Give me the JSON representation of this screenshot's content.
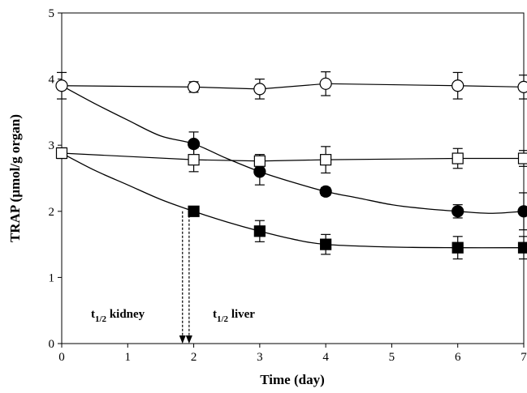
{
  "chart_data": {
    "type": "line",
    "xlabel": "Time (day)",
    "ylabel": "TRAP (µmol/g organ)",
    "xlim": [
      0,
      7
    ],
    "ylim": [
      0,
      5
    ],
    "xticks": [
      "0",
      "1",
      "2",
      "3",
      "4",
      "5",
      "6",
      "7"
    ],
    "yticks": [
      "0",
      "1",
      "2",
      "3",
      "4",
      "5"
    ],
    "grid": false,
    "series": [
      {
        "marker": "open-circle",
        "x": [
          0,
          2,
          3,
          4,
          6,
          7
        ],
        "y": [
          3.9,
          3.88,
          3.85,
          3.93,
          3.9,
          3.88
        ],
        "err": [
          0.2,
          0.08,
          0.15,
          0.18,
          0.2,
          0.18
        ]
      },
      {
        "marker": "filled-circle",
        "x": [
          2,
          3,
          4,
          6,
          7
        ],
        "y": [
          3.02,
          2.6,
          2.3,
          2.0,
          2.0
        ],
        "err": [
          0.18,
          0.2,
          0.06,
          0.1,
          0.28
        ]
      },
      {
        "marker": "open-square",
        "x": [
          0,
          2,
          3,
          4,
          6,
          7
        ],
        "y": [
          2.88,
          2.78,
          2.76,
          2.78,
          2.8,
          2.8
        ],
        "err": [
          0.08,
          0.18,
          0.1,
          0.2,
          0.15,
          0.12
        ]
      },
      {
        "marker": "filled-square",
        "x": [
          2,
          3,
          4,
          6,
          7
        ],
        "y": [
          2.0,
          1.7,
          1.5,
          1.45,
          1.45
        ],
        "err": [
          0.05,
          0.16,
          0.15,
          0.17,
          0.17
        ]
      }
    ],
    "curves": [
      {
        "points": [
          [
            0,
            3.9
          ],
          [
            0.5,
            3.63
          ],
          [
            1,
            3.38
          ],
          [
            1.5,
            3.14
          ],
          [
            2,
            3.02
          ],
          [
            2.5,
            2.8
          ],
          [
            3,
            2.6
          ],
          [
            3.5,
            2.44
          ],
          [
            4,
            2.3
          ],
          [
            4.5,
            2.2
          ],
          [
            5,
            2.1
          ],
          [
            5.5,
            2.04
          ],
          [
            6,
            2.0
          ],
          [
            6.5,
            1.97
          ],
          [
            7,
            2.0
          ]
        ]
      },
      {
        "points": [
          [
            0,
            2.88
          ],
          [
            0.5,
            2.62
          ],
          [
            1,
            2.4
          ],
          [
            1.5,
            2.18
          ],
          [
            2,
            2.0
          ],
          [
            2.5,
            1.84
          ],
          [
            3,
            1.7
          ],
          [
            3.5,
            1.58
          ],
          [
            4,
            1.5
          ],
          [
            5,
            1.46
          ],
          [
            6,
            1.45
          ],
          [
            7,
            1.45
          ]
        ]
      }
    ],
    "annotations": [
      {
        "text_main": "t",
        "text_sub": "1/2",
        "text_rest": " kidney",
        "x": 1.83
      },
      {
        "text_main": "t",
        "text_sub": "1/2",
        "text_rest": " liver",
        "x": 1.93
      }
    ]
  }
}
